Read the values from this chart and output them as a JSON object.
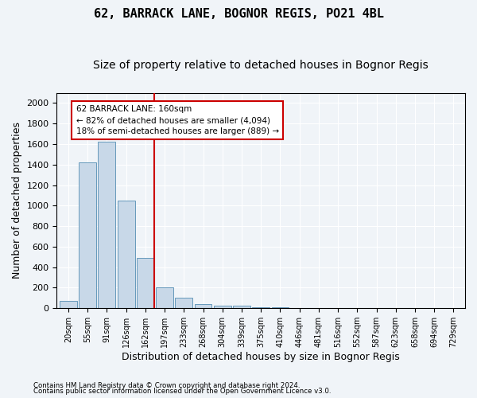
{
  "title1": "62, BARRACK LANE, BOGNOR REGIS, PO21 4BL",
  "title2": "Size of property relative to detached houses in Bognor Regis",
  "xlabel": "Distribution of detached houses by size in Bognor Regis",
  "ylabel": "Number of detached properties",
  "footnote1": "Contains HM Land Registry data © Crown copyright and database right 2024.",
  "footnote2": "Contains public sector information licensed under the Open Government Licence v3.0.",
  "bins": [
    "20sqm",
    "55sqm",
    "91sqm",
    "126sqm",
    "162sqm",
    "197sqm",
    "233sqm",
    "268sqm",
    "304sqm",
    "339sqm",
    "375sqm",
    "410sqm",
    "446sqm",
    "481sqm",
    "516sqm",
    "552sqm",
    "587sqm",
    "623sqm",
    "658sqm",
    "694sqm",
    "729sqm"
  ],
  "values": [
    75,
    1420,
    1625,
    1050,
    490,
    205,
    100,
    40,
    28,
    22,
    12,
    8,
    5,
    3,
    2,
    1,
    1,
    0,
    0,
    0,
    0
  ],
  "bar_color": "#c8d8e8",
  "bar_edge_color": "#6699bb",
  "property_line_bin": 4,
  "property_line_color": "#cc0000",
  "annotation_text": "62 BARRACK LANE: 160sqm\n← 82% of detached houses are smaller (4,094)\n18% of semi-detached houses are larger (889) →",
  "annotation_box_color": "#cc0000",
  "ylim": [
    0,
    2100
  ],
  "yticks": [
    0,
    200,
    400,
    600,
    800,
    1000,
    1200,
    1400,
    1600,
    1800,
    2000
  ],
  "background_color": "#f0f4f8",
  "grid_color": "#ffffff",
  "title1_fontsize": 11,
  "title2_fontsize": 10,
  "xlabel_fontsize": 9,
  "ylabel_fontsize": 9
}
